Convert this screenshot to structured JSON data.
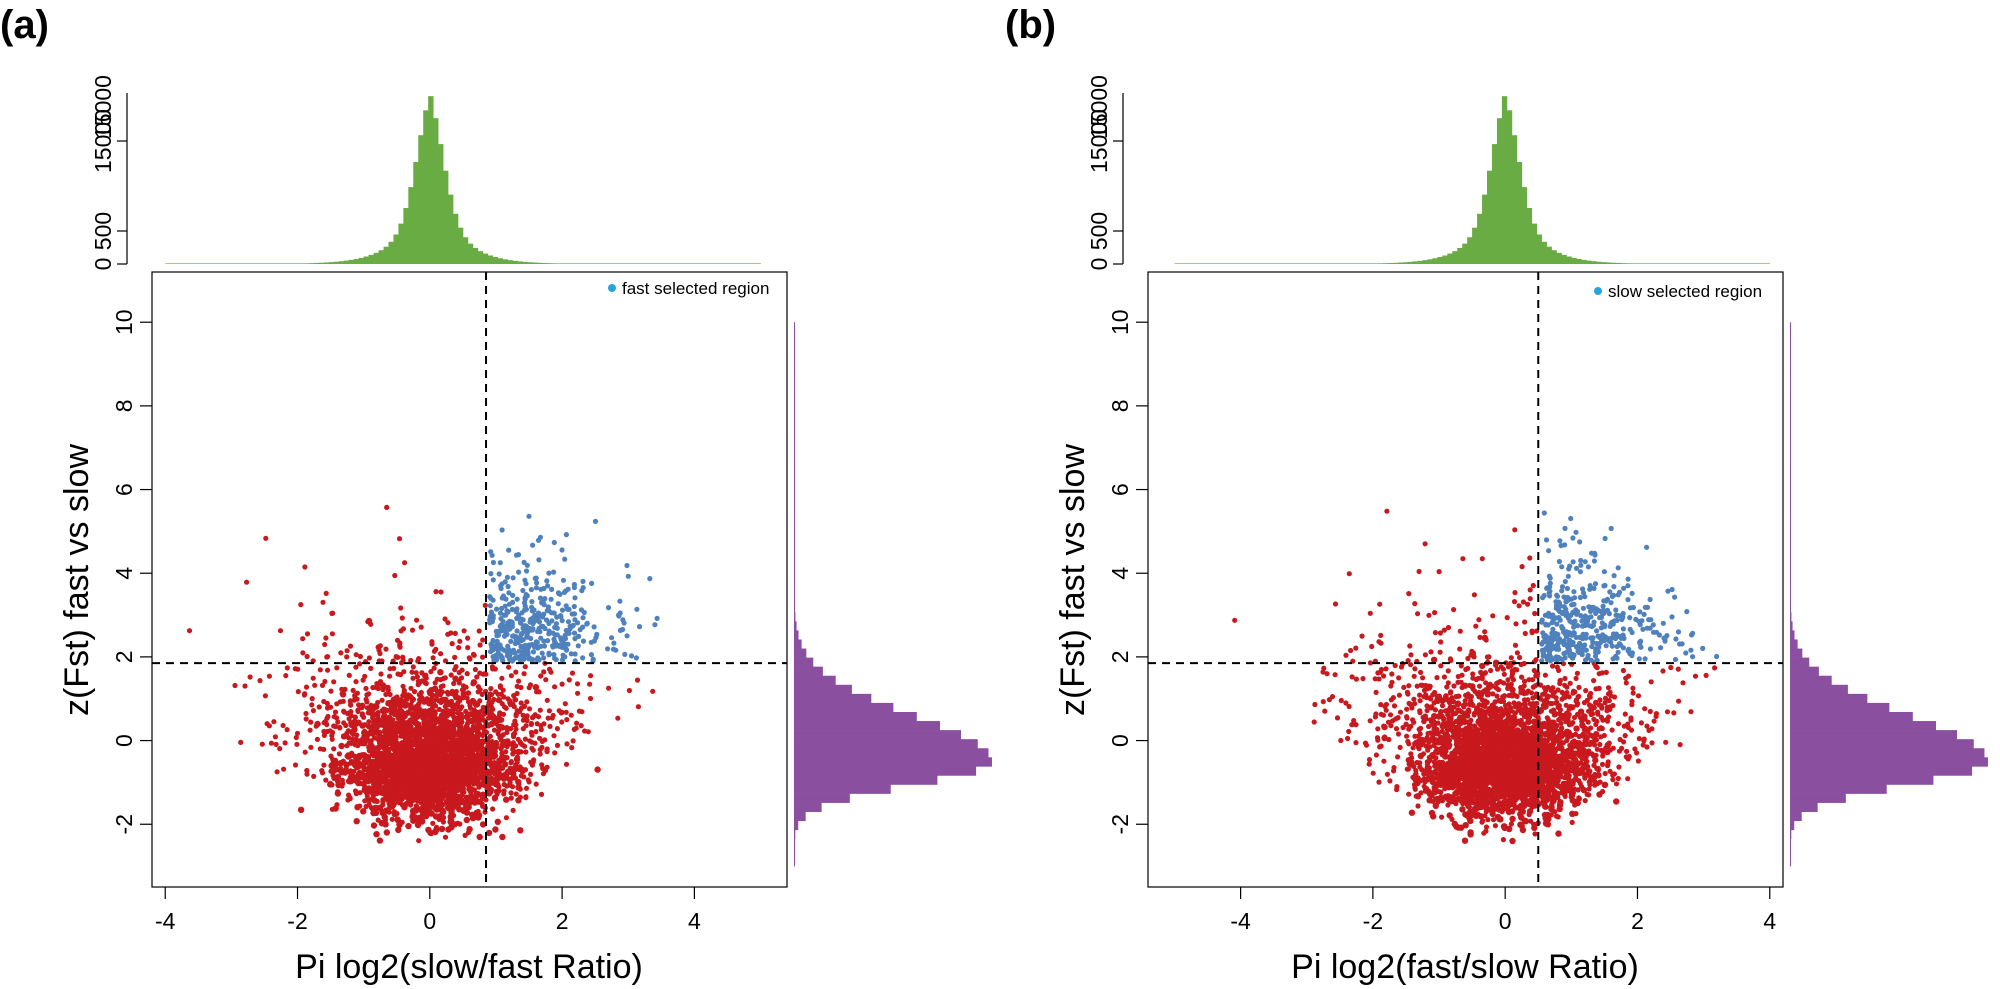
{
  "chart_data": [
    {
      "panel": "(a)",
      "type": "scatter",
      "xlabel": "Pi log2(slow/fast Ratio)",
      "ylabel": "z(Fst) fast vs slow",
      "xlim": [
        -4.2,
        5.4
      ],
      "ylim": [
        -3.5,
        11.2
      ],
      "xticks": [
        "-4",
        "-2",
        "0",
        "2",
        "4"
      ],
      "xtick_values": [
        -4,
        -2,
        0,
        2,
        4
      ],
      "yticks": [
        "-2",
        "0",
        "2",
        "4",
        "6",
        "8",
        "10"
      ],
      "ytick_values": [
        -2,
        0,
        2,
        4,
        6,
        8,
        10
      ],
      "thresholds": {
        "x": 0.85,
        "y": 1.85
      },
      "legend": "fast selected region",
      "colors": {
        "selected": "#4f81bd",
        "other": "#c8191e",
        "top_hist": "#6aac44",
        "side_hist": "#8b4f9f"
      },
      "top_histogram": {
        "yticks": [
          "0",
          "500",
          "15000"
        ],
        "ytick_values": [
          0,
          500,
          15000
        ],
        "label_top": "15000",
        "center": 0,
        "range": [
          -4,
          5
        ]
      },
      "side_histogram": {
        "center": -0.5,
        "range": [
          -3,
          10
        ]
      },
      "blue_seed": 11,
      "red_seed": 7
    },
    {
      "panel": "(b)",
      "type": "scatter",
      "xlabel": "Pi log2(fast/slow Ratio)",
      "ylabel": "z(Fst) fast vs slow",
      "xlim": [
        -5.4,
        4.2
      ],
      "ylim": [
        -3.5,
        11.2
      ],
      "xticks": [
        "-4",
        "-2",
        "0",
        "2",
        "4"
      ],
      "xtick_values": [
        -4,
        -2,
        0,
        2,
        4
      ],
      "yticks": [
        "-2",
        "0",
        "2",
        "4",
        "6",
        "8",
        "10"
      ],
      "ytick_values": [
        -2,
        0,
        2,
        4,
        6,
        8,
        10
      ],
      "thresholds": {
        "x": 0.5,
        "y": 1.85
      },
      "legend": "slow selected region",
      "colors": {
        "selected": "#4f81bd",
        "other": "#c8191e",
        "top_hist": "#6aac44",
        "side_hist": "#8b4f9f"
      },
      "top_histogram": {
        "yticks": [
          "0",
          "500",
          "15000"
        ],
        "ytick_values": [
          0,
          500,
          15000
        ],
        "label_top": "15000",
        "center": 0,
        "range": [
          -5,
          4
        ]
      },
      "side_histogram": {
        "center": -0.5,
        "range": [
          -3,
          10
        ]
      },
      "blue_seed": 23,
      "red_seed": 19
    }
  ]
}
